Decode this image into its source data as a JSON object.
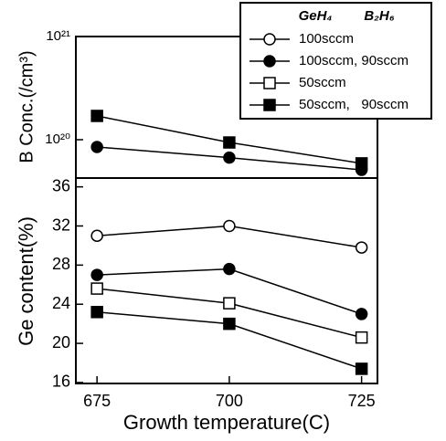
{
  "chart_data": [
    {
      "type": "line",
      "ylabel": "B Conc.(/cm³)",
      "log_y": true,
      "x": [
        675,
        700,
        725
      ],
      "xlim": [
        671,
        728
      ],
      "ylim": [
        4.25e+19,
        1e+21
      ],
      "yticks": [
        {
          "value": 1e+20,
          "label": "10²⁰"
        },
        {
          "value": 1e+21,
          "label": "10²¹"
        }
      ],
      "series": [
        {
          "marker": "filled-circle",
          "color": "#000000",
          "values": [
            8.5e+19,
            6.7e+19,
            5.1e+19
          ]
        },
        {
          "marker": "filled-square",
          "color": "#000000",
          "values": [
            1.7e+20,
            9.4e+19,
            5.9e+19
          ]
        }
      ]
    },
    {
      "type": "line",
      "xlabel": "Growth temperature(C)",
      "ylabel": "Ge content(%)",
      "x": [
        675,
        700,
        725
      ],
      "xlim": [
        671,
        728
      ],
      "xticks": [
        675,
        700,
        725
      ],
      "ylim": [
        15.9,
        36.9
      ],
      "yticks": [
        16,
        20,
        24,
        28,
        32,
        36
      ],
      "legend": "upper right",
      "legend_headers": [
        "GeH₄",
        "B₂H₆"
      ],
      "series": [
        {
          "name": "100sccm",
          "marker": "open-circle",
          "color": "#000000",
          "values": [
            31.0,
            32.0,
            29.8
          ]
        },
        {
          "name": "100sccm, 90sccm",
          "marker": "filled-circle",
          "color": "#000000",
          "values": [
            27.0,
            27.6,
            23.0
          ]
        },
        {
          "name": "50sccm",
          "marker": "open-square",
          "color": "#000000",
          "values": [
            25.6,
            24.1,
            20.6
          ]
        },
        {
          "name": "50sccm,   90sccm",
          "marker": "filled-square",
          "color": "#000000",
          "values": [
            23.2,
            22.0,
            17.4
          ]
        }
      ]
    }
  ]
}
